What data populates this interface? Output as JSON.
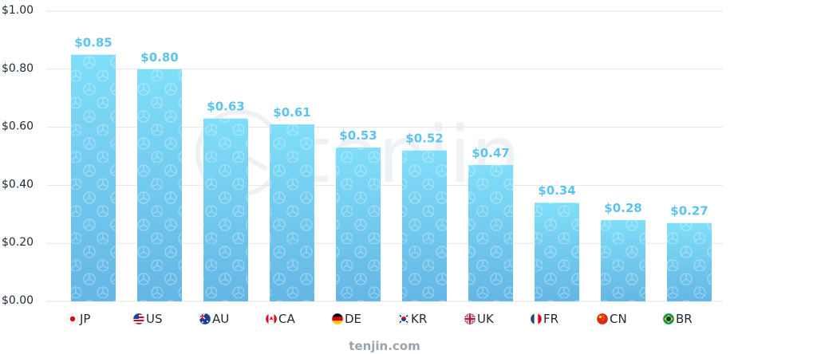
{
  "chart_data": {
    "type": "bar",
    "categories": [
      "JP",
      "US",
      "AU",
      "CA",
      "DE",
      "KR",
      "UK",
      "FR",
      "CN",
      "BR"
    ],
    "values": [
      0.85,
      0.8,
      0.63,
      0.61,
      0.53,
      0.52,
      0.47,
      0.34,
      0.28,
      0.27
    ],
    "value_labels": [
      "$0.85",
      "$0.80",
      "$0.63",
      "$0.61",
      "$0.53",
      "$0.52",
      "$0.47",
      "$0.34",
      "$0.28",
      "$0.27"
    ],
    "title": "",
    "xlabel": "",
    "ylabel": "",
    "ylim": [
      0,
      1.0
    ],
    "yticks": [
      0.0,
      0.2,
      0.4,
      0.6,
      0.8,
      1.0
    ],
    "ytick_labels": [
      "$0.00",
      "$0.20",
      "$0.40",
      "$0.60",
      "$0.80",
      "$1.00"
    ],
    "grid": true,
    "legend": "none",
    "flag_icons": [
      "japan-flag-icon",
      "usa-flag-icon",
      "australia-flag-icon",
      "canada-flag-icon",
      "germany-flag-icon",
      "south-korea-flag-icon",
      "uk-flag-icon",
      "france-flag-icon",
      "china-flag-icon",
      "brazil-flag-icon"
    ]
  },
  "colors": {
    "bar_top": "#80def9",
    "bar_bottom": "#64b6e4",
    "value_label": "#5cc3ee",
    "grid": "#e3e6ea",
    "axis_text": "#1f2a36",
    "footer_text": "#9aa3ab"
  },
  "watermark": "tenjin",
  "footer": "tenjin.com"
}
